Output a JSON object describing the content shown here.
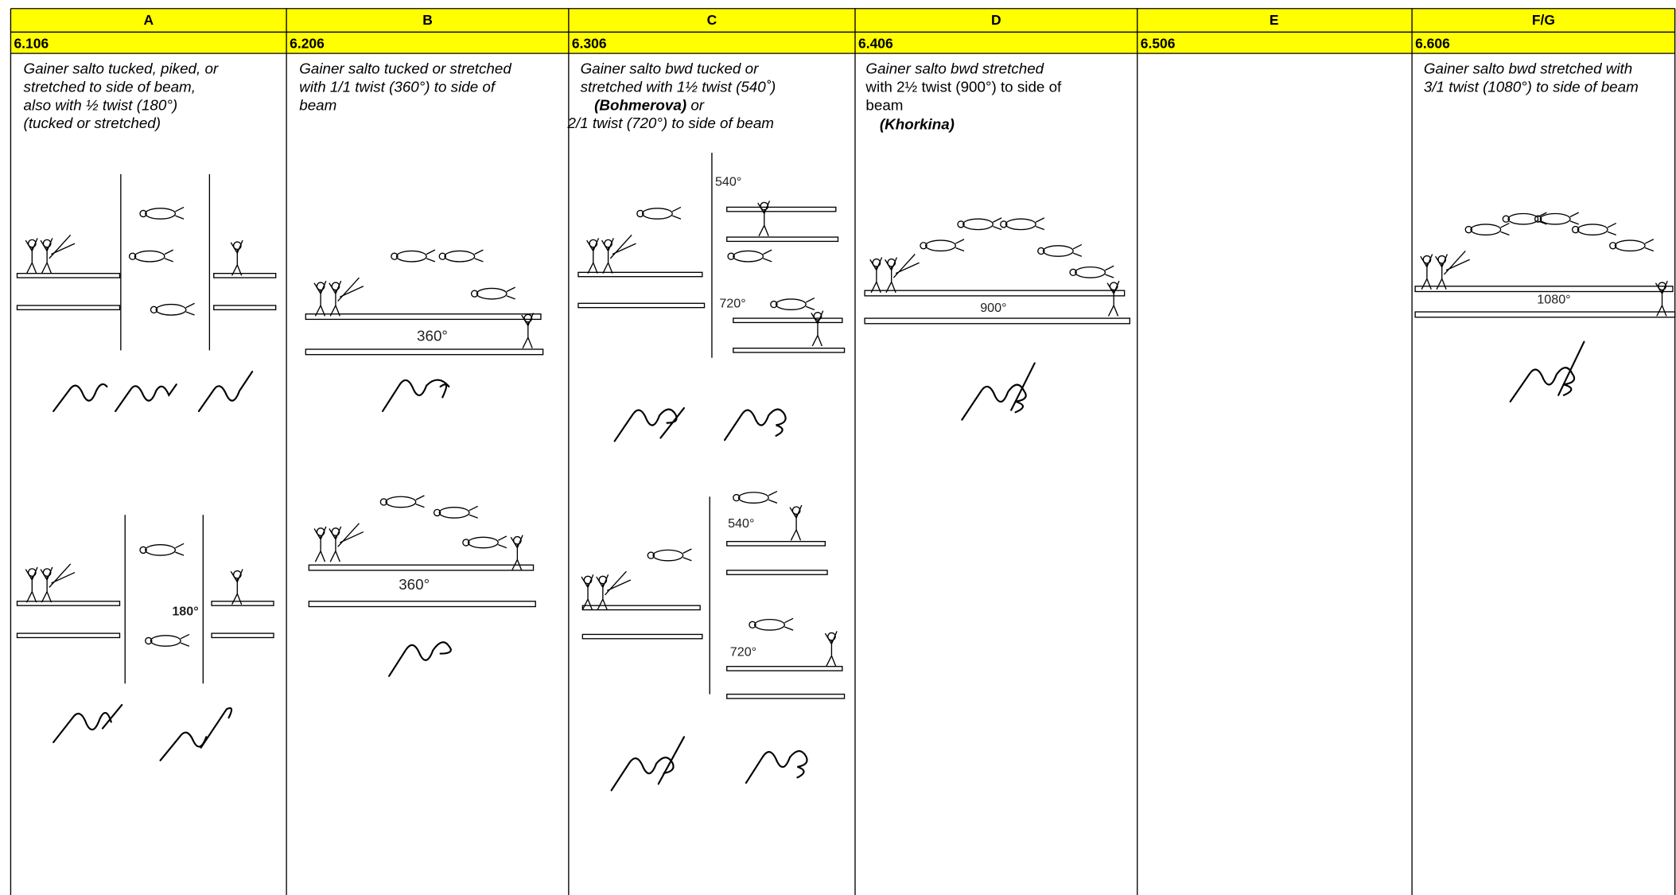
{
  "columns": [
    {
      "letter": "A",
      "code": "6.106",
      "description": [
        "Gainer salto tucked, piked, or",
        "stretched to side of beam,",
        "also with ½ twist (180°)",
        "(tucked or stretched)"
      ],
      "figure_labels": [
        "180°"
      ]
    },
    {
      "letter": "B",
      "code": "6.206",
      "description": [
        "Gainer salto tucked or stretched",
        "with 1/1 twist (360°) to side of",
        "beam"
      ],
      "figure_labels": [
        "360°",
        "360°"
      ]
    },
    {
      "letter": "C",
      "code": "6.306",
      "description": [
        "Gainer salto bwd tucked or",
        "stretched with 1½ twist (540˚)",
        "(Bohmerova)",
        "or",
        "2/1 twist (720°) to side of beam"
      ],
      "figure_labels": [
        "540°",
        "720°",
        "540°",
        "720°"
      ]
    },
    {
      "letter": "D",
      "code": "6.406",
      "description": [
        "Gainer salto bwd stretched",
        "with 2½ twist (900°) to side of",
        "beam",
        "(Khorkina)"
      ],
      "figure_labels": [
        "900°"
      ]
    },
    {
      "letter": "E",
      "code": "6.506"
    },
    {
      "letter": "F/G",
      "code": "6.606",
      "description": [
        "Gainer salto bwd stretched with",
        "3/1 twist (1080°) to side of beam"
      ],
      "figure_labels": [
        "1080°"
      ]
    }
  ]
}
